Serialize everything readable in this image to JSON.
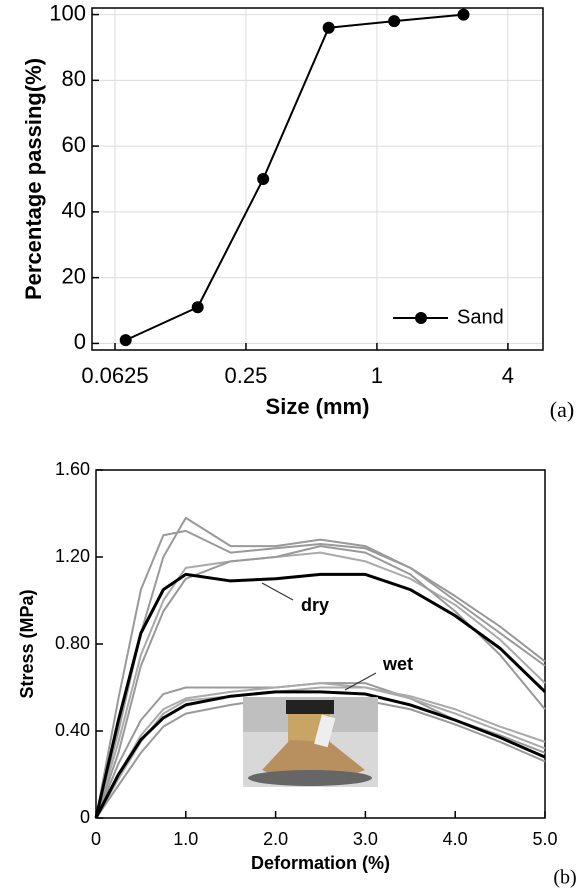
{
  "chart_data": [
    {
      "type": "line",
      "label": "(a)",
      "xlabel": "Size (mm)",
      "ylabel": "Percentage passing(%)",
      "x": [
        0.07,
        0.15,
        0.3,
        0.6,
        1.2,
        2.5
      ],
      "series": [
        {
          "name": "Sand",
          "color": "#000000",
          "values": [
            1,
            11,
            50,
            96,
            98,
            100
          ]
        }
      ],
      "xlog": true,
      "markers": true,
      "grid": true,
      "legend": "lower right",
      "xlim": [
        0.049,
        5.8
      ],
      "xticks": [
        0.0625,
        0.25,
        1,
        4
      ],
      "ylim": [
        -2,
        102
      ],
      "yticks": [
        0,
        20,
        40,
        60,
        80,
        100
      ]
    },
    {
      "type": "line",
      "label": "(b)",
      "xlabel": "Deformation (%)",
      "ylabel": "Stress (MPa)",
      "annotations": [
        "dry",
        "wet"
      ],
      "x": [
        0,
        0.25,
        0.5,
        0.75,
        1.0,
        1.5,
        2.0,
        2.5,
        3.0,
        3.5,
        4.0,
        4.5,
        5.0
      ],
      "series": [
        {
          "color": "#999999",
          "values": [
            0,
            0.55,
            1.05,
            1.3,
            1.32,
            1.22,
            1.24,
            1.26,
            1.24,
            1.15,
            1.0,
            0.85,
            0.7
          ]
        },
        {
          "color": "#999999",
          "values": [
            0,
            0.4,
            0.85,
            1.2,
            1.38,
            1.25,
            1.25,
            1.28,
            1.25,
            1.15,
            1.02,
            0.88,
            0.72
          ]
        },
        {
          "color": "#aaaaaa",
          "values": [
            0,
            0.35,
            0.75,
            1.0,
            1.15,
            1.18,
            1.2,
            1.22,
            1.18,
            1.1,
            0.98,
            0.82,
            0.62
          ]
        },
        {
          "color": "#999999",
          "values": [
            0,
            0.3,
            0.7,
            0.95,
            1.1,
            1.18,
            1.2,
            1.25,
            1.22,
            1.12,
            0.95,
            0.75,
            0.5
          ]
        },
        {
          "color": "#999999",
          "values": [
            0,
            0.25,
            0.45,
            0.57,
            0.6,
            0.6,
            0.6,
            0.62,
            0.62,
            0.55,
            0.45,
            0.38,
            0.3
          ]
        },
        {
          "color": "#aaaaaa",
          "values": [
            0,
            0.2,
            0.38,
            0.5,
            0.55,
            0.58,
            0.6,
            0.62,
            0.6,
            0.55,
            0.48,
            0.4,
            0.32
          ]
        },
        {
          "color": "#999999",
          "values": [
            0,
            0.15,
            0.3,
            0.42,
            0.48,
            0.52,
            0.55,
            0.55,
            0.54,
            0.5,
            0.43,
            0.35,
            0.26
          ]
        },
        {
          "color": "#aaaaaa",
          "values": [
            0,
            0.18,
            0.35,
            0.48,
            0.54,
            0.56,
            0.58,
            0.6,
            0.6,
            0.56,
            0.5,
            0.42,
            0.35
          ]
        },
        {
          "color": "#000000",
          "width": 3,
          "values": [
            0,
            0.45,
            0.85,
            1.05,
            1.12,
            1.09,
            1.1,
            1.12,
            1.12,
            1.05,
            0.93,
            0.78,
            0.58
          ]
        },
        {
          "color": "#000000",
          "width": 3,
          "values": [
            0,
            0.2,
            0.36,
            0.46,
            0.52,
            0.56,
            0.58,
            0.58,
            0.57,
            0.52,
            0.45,
            0.37,
            0.28
          ]
        }
      ],
      "xlim": [
        0,
        5.0
      ],
      "xticks": [
        0,
        {
          "value": 1,
          "label": "1.0"
        },
        {
          "value": 2,
          "label": "2.0"
        },
        {
          "value": 3,
          "label": "3.0"
        },
        {
          "value": 4,
          "label": "4.0"
        },
        {
          "value": 5,
          "label": "5.0"
        }
      ],
      "ylim": [
        0,
        1.6
      ],
      "yticks": [
        0,
        {
          "value": 0.4,
          "label": "0.40"
        },
        {
          "value": 0.8,
          "label": "0.80"
        },
        {
          "value": 1.2,
          "label": "1.20"
        },
        {
          "value": 1.6,
          "label": "1.60"
        }
      ]
    }
  ]
}
